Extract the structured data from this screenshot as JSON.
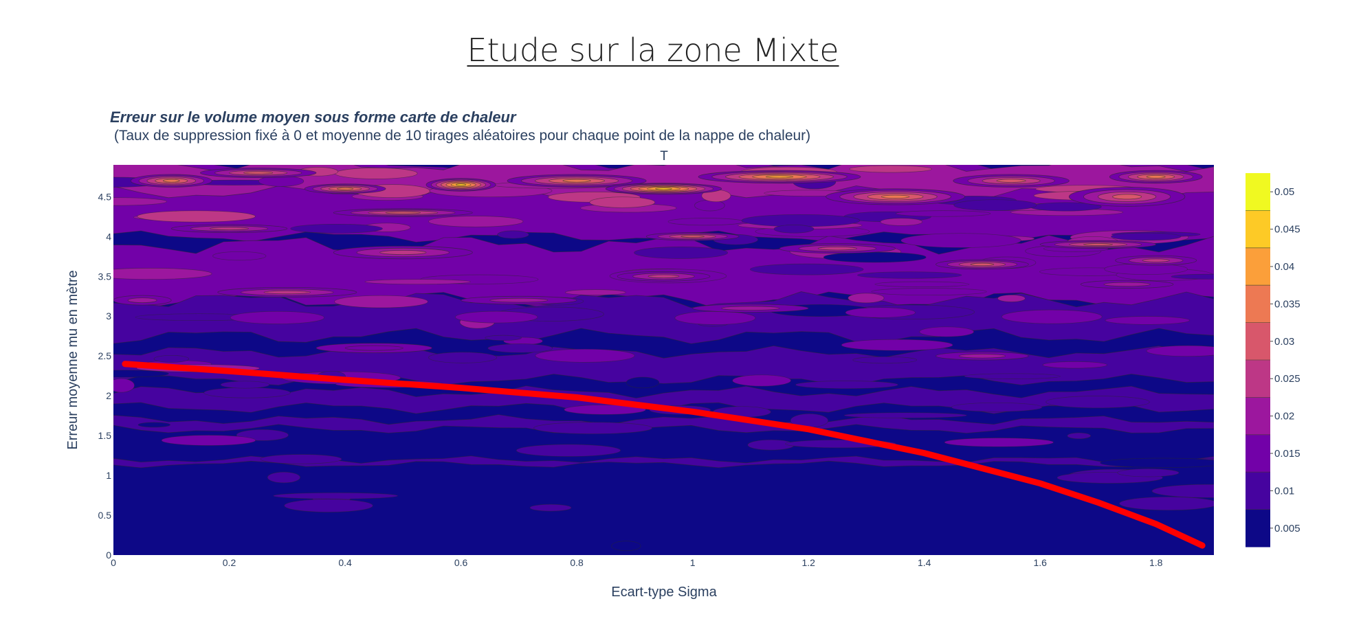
{
  "page": {
    "title": "Etude sur la zone Mixte"
  },
  "chart_data": {
    "type": "heatmap",
    "style": "contour",
    "title": "Erreur sur le volume moyen sous forme carte de chaleur",
    "subtitle": " (Taux de suppression fixé à 0 et moyenne de 10 tirages aléatoires pour chaque point de la nappe de chaleur)",
    "top_label": "T",
    "xlabel": "Ecart-type Sigma",
    "ylabel": "Erreur moyenne mu en mètre",
    "xlim": [
      0,
      1.9
    ],
    "ylim": [
      0,
      4.9
    ],
    "x_ticks": [
      "0",
      "0.2",
      "0.4",
      "0.6",
      "0.8",
      "1",
      "1.2",
      "1.4",
      "1.6",
      "1.8"
    ],
    "y_ticks": [
      "0",
      "0.5",
      "1",
      "1.5",
      "2",
      "2.5",
      "3",
      "3.5",
      "4",
      "4.5"
    ],
    "colorbar": {
      "range": [
        0.0025,
        0.0525
      ],
      "ticks": [
        "0.005",
        "0.01",
        "0.015",
        "0.02",
        "0.025",
        "0.03",
        "0.035",
        "0.04",
        "0.045",
        "0.05"
      ],
      "colors": [
        "#0d0887",
        "#46039f",
        "#7201a8",
        "#9c179e",
        "#bd3786",
        "#d8576b",
        "#ed7953",
        "#fb9f3a",
        "#fdca26",
        "#f0f921"
      ]
    },
    "background_level_color": "#0d0887",
    "contour_stroke": "#2a2a2a",
    "heat_blobs": [
      {
        "x": 0.1,
        "y": 4.7,
        "rx": 0.07,
        "ry": 0.08,
        "level": 0.035
      },
      {
        "x": 0.25,
        "y": 4.8,
        "rx": 0.1,
        "ry": 0.06,
        "level": 0.03
      },
      {
        "x": 0.4,
        "y": 4.6,
        "rx": 0.07,
        "ry": 0.06,
        "level": 0.035
      },
      {
        "x": 0.6,
        "y": 4.65,
        "rx": 0.06,
        "ry": 0.08,
        "level": 0.045
      },
      {
        "x": 0.8,
        "y": 4.7,
        "rx": 0.12,
        "ry": 0.08,
        "level": 0.035
      },
      {
        "x": 0.95,
        "y": 4.6,
        "rx": 0.1,
        "ry": 0.07,
        "level": 0.045
      },
      {
        "x": 1.15,
        "y": 4.75,
        "rx": 0.14,
        "ry": 0.08,
        "level": 0.04
      },
      {
        "x": 1.35,
        "y": 4.5,
        "rx": 0.12,
        "ry": 0.1,
        "level": 0.035
      },
      {
        "x": 1.55,
        "y": 4.7,
        "rx": 0.1,
        "ry": 0.08,
        "level": 0.03
      },
      {
        "x": 1.75,
        "y": 4.5,
        "rx": 0.1,
        "ry": 0.12,
        "level": 0.03
      },
      {
        "x": 1.8,
        "y": 4.75,
        "rx": 0.08,
        "ry": 0.08,
        "level": 0.035
      },
      {
        "x": 0.5,
        "y": 4.3,
        "rx": 0.12,
        "ry": 0.05,
        "level": 0.03
      },
      {
        "x": 0.2,
        "y": 4.1,
        "rx": 0.1,
        "ry": 0.05,
        "level": 0.025
      },
      {
        "x": 1.0,
        "y": 4.0,
        "rx": 0.08,
        "ry": 0.05,
        "level": 0.03
      },
      {
        "x": 1.7,
        "y": 3.9,
        "rx": 0.1,
        "ry": 0.05,
        "level": 0.03
      },
      {
        "x": 0.5,
        "y": 3.8,
        "rx": 0.12,
        "ry": 0.08,
        "level": 0.025
      },
      {
        "x": 1.25,
        "y": 3.85,
        "rx": 0.1,
        "ry": 0.06,
        "level": 0.025
      },
      {
        "x": 1.5,
        "y": 3.65,
        "rx": 0.08,
        "ry": 0.06,
        "level": 0.03
      },
      {
        "x": 1.8,
        "y": 3.7,
        "rx": 0.07,
        "ry": 0.06,
        "level": 0.025
      },
      {
        "x": 0.3,
        "y": 3.3,
        "rx": 0.12,
        "ry": 0.06,
        "level": 0.025
      },
      {
        "x": 0.95,
        "y": 3.5,
        "rx": 0.08,
        "ry": 0.06,
        "level": 0.025
      },
      {
        "x": 0.7,
        "y": 3.2,
        "rx": 0.1,
        "ry": 0.05,
        "level": 0.02
      },
      {
        "x": 1.1,
        "y": 3.1,
        "rx": 0.1,
        "ry": 0.05,
        "level": 0.02
      },
      {
        "x": 1.75,
        "y": 3.4,
        "rx": 0.08,
        "ry": 0.05,
        "level": 0.02
      },
      {
        "x": 1.5,
        "y": 2.5,
        "rx": 0.08,
        "ry": 0.05,
        "level": 0.02
      },
      {
        "x": 0.45,
        "y": 2.6,
        "rx": 0.1,
        "ry": 0.06,
        "level": 0.015
      },
      {
        "x": 0.05,
        "y": 3.2,
        "rx": 0.05,
        "ry": 0.06,
        "level": 0.02
      }
    ],
    "series": [
      {
        "color": "#ff0000",
        "x": [
          0.02,
          0.2,
          0.4,
          0.6,
          0.8,
          1.0,
          1.2,
          1.4,
          1.6,
          1.7,
          1.8,
          1.88
        ],
        "y": [
          2.4,
          2.31,
          2.2,
          2.1,
          1.98,
          1.8,
          1.58,
          1.28,
          0.9,
          0.66,
          0.39,
          0.12
        ]
      }
    ]
  }
}
